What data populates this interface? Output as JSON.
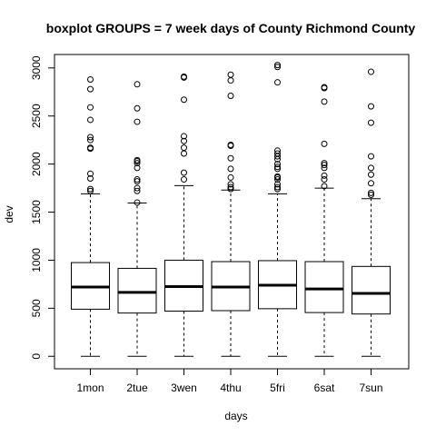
{
  "chart_data": {
    "type": "boxplot",
    "title": "boxplot GROUPS = 7 week days of County Richmond County",
    "xlabel": "days",
    "ylabel": "dev",
    "ylim": [
      -130,
      3140
    ],
    "yticks": [
      0,
      500,
      1000,
      1500,
      2000,
      2500,
      3000
    ],
    "grid": false,
    "categories": [
      "1mon",
      "2tue",
      "3wen",
      "4thu",
      "5fri",
      "6sat",
      "7sun"
    ],
    "boxes": [
      {
        "name": "1mon",
        "min": 0,
        "q1": 490,
        "median": 720,
        "q3": 975,
        "max": 1690,
        "outliers": [
          1720,
          1740,
          1850,
          1900,
          2160,
          2170,
          2250,
          2280,
          2460,
          2590,
          2780,
          2880
        ]
      },
      {
        "name": "2tue",
        "min": 0,
        "q1": 450,
        "median": 665,
        "q3": 915,
        "max": 1595,
        "outliers": [
          1600,
          1720,
          1750,
          1820,
          1840,
          1960,
          2010,
          2030,
          2040,
          2440,
          2580,
          2830
        ]
      },
      {
        "name": "3wen",
        "min": 0,
        "q1": 470,
        "median": 725,
        "q3": 1000,
        "max": 1775,
        "outliers": [
          1840,
          1910,
          2110,
          2170,
          2240,
          2290,
          2670,
          2900,
          2910
        ]
      },
      {
        "name": "4thu",
        "min": 0,
        "q1": 475,
        "median": 720,
        "q3": 985,
        "max": 1730,
        "outliers": [
          1740,
          1760,
          1790,
          1860,
          1950,
          2060,
          2190,
          2200,
          2710,
          2870,
          2930
        ]
      },
      {
        "name": "5fri",
        "min": 0,
        "q1": 495,
        "median": 740,
        "q3": 995,
        "max": 1690,
        "outliers": [
          1740,
          1760,
          1790,
          1840,
          1860,
          1870,
          1950,
          1970,
          2000,
          2050,
          2080,
          2110,
          2140,
          2850,
          3010,
          3030
        ]
      },
      {
        "name": "6sat",
        "min": 0,
        "q1": 455,
        "median": 700,
        "q3": 985,
        "max": 1750,
        "outliers": [
          1770,
          1840,
          1880,
          1960,
          1990,
          2010,
          2210,
          2650,
          2790,
          2800
        ]
      },
      {
        "name": "7sun",
        "min": 0,
        "q1": 440,
        "median": 655,
        "q3": 935,
        "max": 1640,
        "outliers": [
          1680,
          1700,
          1800,
          1890,
          1960,
          2080,
          2430,
          2600,
          2960
        ]
      }
    ]
  }
}
